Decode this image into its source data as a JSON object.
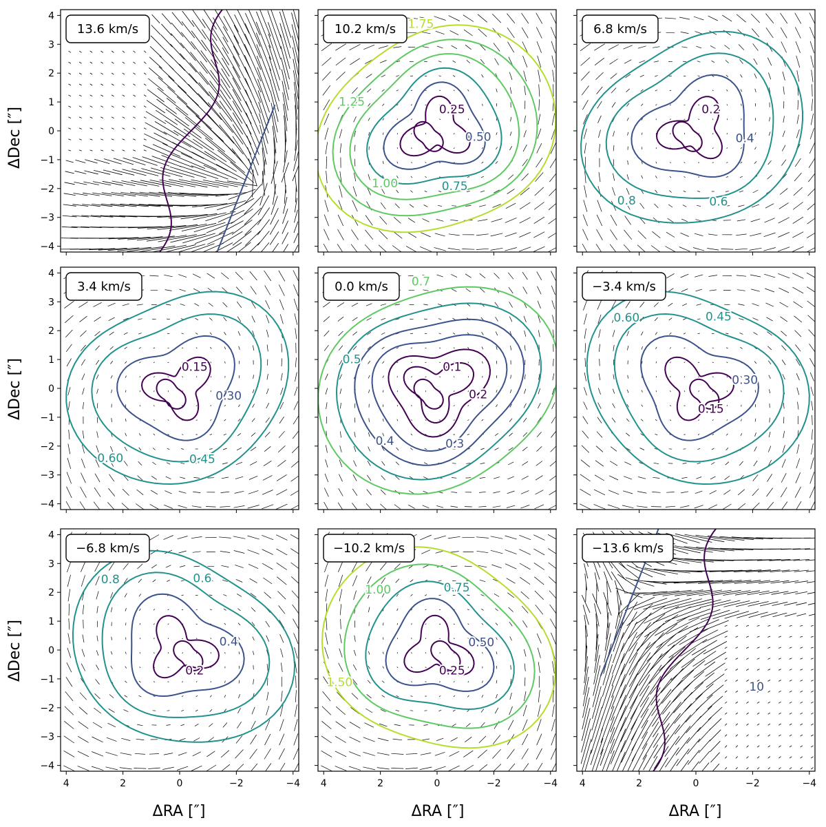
{
  "figure": {
    "ylabel": "ΔDec [″]",
    "xlabel": "ΔRA [″]",
    "xticks": [
      4,
      2,
      0,
      -2,
      -4
    ],
    "xtick_labels": [
      "4",
      "2",
      "0",
      "−2",
      "−4"
    ],
    "yticks": [
      4,
      3,
      2,
      1,
      0,
      -1,
      -2,
      -3,
      -4
    ],
    "ytick_labels": [
      "4",
      "3",
      "2",
      "1",
      "0",
      "−1",
      "−2",
      "−3",
      "−4"
    ],
    "xlim": [
      4.2,
      -4.2
    ],
    "ylim": [
      -4.2,
      4.2
    ],
    "colors": {
      "low": "#440154",
      "mid_low": "#3b528b",
      "mid": "#21918c",
      "mid_high": "#5ec962",
      "high": "#b5de2b",
      "vectors": "#000000"
    }
  },
  "chart_data": [
    {
      "type": "contour",
      "velocity_label": "13.6 km/s",
      "velocity": 13.6,
      "contour_labels": [],
      "vector_density": "dense"
    },
    {
      "type": "contour",
      "velocity_label": "10.2 km/s",
      "velocity": 10.2,
      "contour_labels": [
        "0.25",
        "0.50",
        "0.75",
        "1.00",
        "1.25",
        "1.75"
      ],
      "vector_density": "sparse"
    },
    {
      "type": "contour",
      "velocity_label": "6.8 km/s",
      "velocity": 6.8,
      "contour_labels": [
        "0.2",
        "0.4",
        "0.6",
        "0.8"
      ],
      "vector_density": "sparse"
    },
    {
      "type": "contour",
      "velocity_label": "3.4 km/s",
      "velocity": 3.4,
      "contour_labels": [
        "0.15",
        "0.30",
        "0.45",
        "0.60"
      ],
      "vector_density": "sparse"
    },
    {
      "type": "contour",
      "velocity_label": "0.0 km/s",
      "velocity": 0.0,
      "contour_labels": [
        "0.1",
        "0.2",
        "0.3",
        "0.4",
        "0.5",
        "0.7"
      ],
      "vector_density": "sparse"
    },
    {
      "type": "contour",
      "velocity_label": "−3.4 km/s",
      "velocity": -3.4,
      "contour_labels": [
        "0.15",
        "0.30",
        "0.45",
        "0.60"
      ],
      "vector_density": "sparse"
    },
    {
      "type": "contour",
      "velocity_label": "−6.8 km/s",
      "velocity": -6.8,
      "contour_labels": [
        "0.2",
        "0.4",
        "0.6",
        "0.8"
      ],
      "vector_density": "sparse"
    },
    {
      "type": "contour",
      "velocity_label": "−10.2 km/s",
      "velocity": -10.2,
      "contour_labels": [
        "0.25",
        "0.50",
        "0.75",
        "1.00",
        "1.50"
      ],
      "vector_density": "sparse"
    },
    {
      "type": "contour",
      "velocity_label": "−13.6 km/s",
      "velocity": -13.6,
      "contour_labels": [
        "10"
      ],
      "vector_density": "dense"
    }
  ]
}
